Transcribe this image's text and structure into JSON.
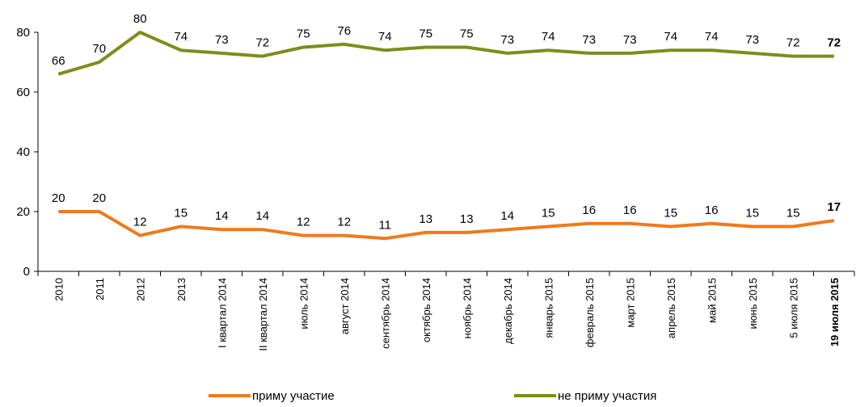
{
  "chart_data": {
    "type": "line",
    "categories": [
      "2010",
      "2011",
      "2012",
      "2013",
      "I квартал 2014",
      "II квартал 2014",
      "июль 2014",
      "август 2014",
      "сентябрь 2014",
      "октябрь 2014",
      "ноябрь 2014",
      "декабрь 2014",
      "январь 2015",
      "февраль 2015",
      "март 2015",
      "апрель 2015",
      "май 2015",
      "июнь 2015",
      "5 июля 2015",
      "19 июля 2015"
    ],
    "series": [
      {
        "name": "приму участие",
        "color": "#f07a1c",
        "values": [
          20,
          20,
          12,
          15,
          14,
          14,
          12,
          12,
          11,
          13,
          13,
          14,
          15,
          16,
          16,
          15,
          16,
          15,
          15,
          17
        ]
      },
      {
        "name": "не приму участия",
        "color": "#7f8c1a",
        "values": [
          66,
          70,
          80,
          74,
          73,
          72,
          75,
          76,
          74,
          75,
          75,
          73,
          74,
          73,
          73,
          74,
          74,
          73,
          72,
          72
        ]
      }
    ],
    "ylim": [
      0,
      80
    ],
    "yticks": [
      0,
      20,
      40,
      60,
      80
    ],
    "legend": "bottom"
  }
}
